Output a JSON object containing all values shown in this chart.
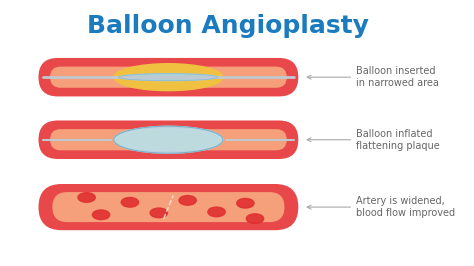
{
  "title": "Balloon Angioplasty",
  "title_color": "#1a7bbf",
  "title_fontsize": 18,
  "background_color": "#ffffff",
  "labels": [
    "Balloon inserted\nin narrowed area",
    "Balloon inflated\nflattening plaque",
    "Artery is widened,\nblood flow improved"
  ],
  "label_color": "#666666",
  "label_fontsize": 7,
  "artery_outer_color": "#e8484a",
  "artery_inner_color": "#f5a07a",
  "plaque_color": "#f0c040",
  "balloon_deflated_color": "#a8d4e8",
  "balloon_inflated_color": "#b8dff0",
  "catheter_color": "#c0c8d0",
  "rbc_color": "#e03030",
  "arrow_color": "#aaaaaa"
}
